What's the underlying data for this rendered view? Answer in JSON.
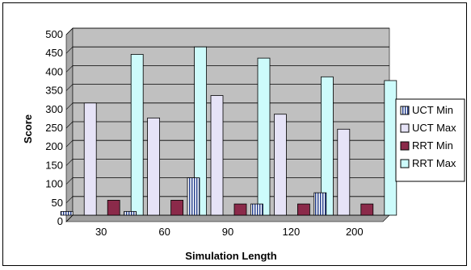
{
  "chart_data": {
    "type": "bar",
    "categories": [
      "30",
      "60",
      "90",
      "120",
      "200"
    ],
    "series": [
      {
        "name": "UCT Min",
        "values": [
          10,
          10,
          100,
          30,
          60
        ],
        "color": "#1f3a8a",
        "pattern": "vstripes"
      },
      {
        "name": "UCT Max",
        "values": [
          300,
          260,
          320,
          270,
          230
        ],
        "color": "#e6e3f7"
      },
      {
        "name": "RRT Min",
        "values": [
          40,
          40,
          30,
          30,
          30
        ],
        "color": "#8b2a4a"
      },
      {
        "name": "RRT Max",
        "values": [
          430,
          450,
          420,
          370,
          360
        ],
        "color": "#cdfbfb"
      }
    ],
    "xlabel": "Simulation Length",
    "ylabel": "Score",
    "ylim": [
      0,
      500
    ],
    "yticks": [
      0,
      50,
      100,
      150,
      200,
      250,
      300,
      350,
      400,
      450,
      500
    ],
    "grid": true,
    "legend": "right",
    "plot_background": "#c0c0c0"
  }
}
